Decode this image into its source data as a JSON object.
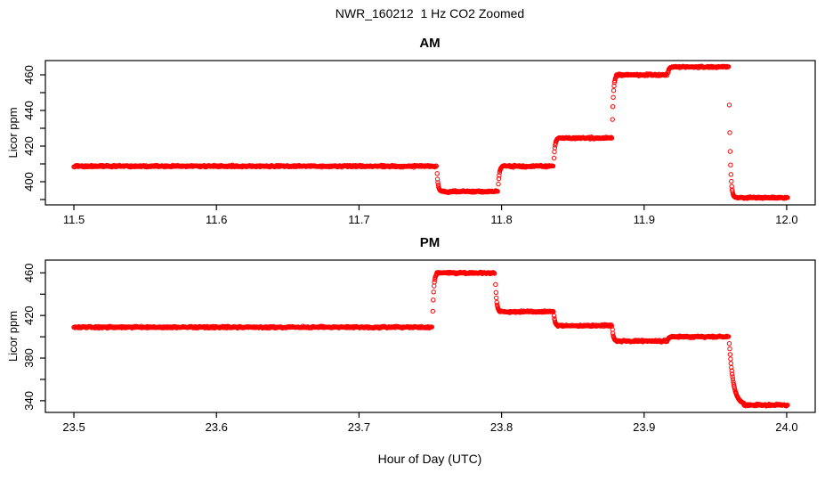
{
  "title": "NWR_160212  1 Hz CO2 Zoomed",
  "xlabel": "Hour of Day (UTC)",
  "accent_color": "#ff0000",
  "chart_data": [
    {
      "type": "scatter",
      "title": "AM",
      "ylabel": "Licor ppm",
      "marker": "open-circle",
      "color": "#ff0000",
      "sample_rate_hz": 1,
      "xlim": [
        11.48,
        12.02
      ],
      "ylim": [
        387,
        468
      ],
      "xticks": [
        11.5,
        11.6,
        11.7,
        11.8,
        11.9,
        12.0
      ],
      "xtick_labels": [
        "11.5",
        "11.6",
        "11.7",
        "11.8",
        "11.9",
        "12.0"
      ],
      "yticks": [
        390,
        400,
        410,
        420,
        430,
        440,
        450,
        460
      ],
      "ytick_labels": [
        "",
        "400",
        "",
        "420",
        "",
        "440",
        "",
        "460"
      ],
      "grid": false,
      "legend": false,
      "noise_ppm": 0.5,
      "transition_tau_h": 0.0008,
      "seed": 42,
      "segments": [
        {
          "start": 11.5,
          "end": 11.7545,
          "value": 408.7
        },
        {
          "start": 11.7576,
          "end": 11.7975,
          "value": 394.5
        },
        {
          "start": 11.8006,
          "end": 11.8365,
          "value": 408.7
        },
        {
          "start": 11.8396,
          "end": 11.8775,
          "value": 424.5
        },
        {
          "start": 11.8806,
          "end": 11.9165,
          "value": 460.0
        },
        {
          "start": 11.9196,
          "end": 11.9595,
          "value": 464.5
        },
        {
          "start": 11.966,
          "end": 12.0008,
          "value": 391.0
        }
      ]
    },
    {
      "type": "scatter",
      "title": "PM",
      "ylabel": "Licor ppm",
      "marker": "open-circle",
      "color": "#ff0000",
      "sample_rate_hz": 1,
      "xlim": [
        23.48,
        24.02
      ],
      "ylim": [
        329,
        472
      ],
      "xticks": [
        23.5,
        23.6,
        23.7,
        23.8,
        23.9,
        24.0
      ],
      "xtick_labels": [
        "23.5",
        "23.6",
        "23.7",
        "23.8",
        "23.9",
        "24.0"
      ],
      "yticks": [
        340,
        360,
        380,
        400,
        420,
        440,
        460
      ],
      "ytick_labels": [
        "340",
        "",
        "380",
        "",
        "420",
        "",
        "460"
      ],
      "grid": false,
      "legend": false,
      "noise_ppm": 0.8,
      "transition_tau_h": 0.0008,
      "final_decay_tau_h": 0.0028,
      "seed": 1337,
      "segments": [
        {
          "start": 23.5,
          "end": 23.7515,
          "value": 409.0
        },
        {
          "start": 23.7546,
          "end": 23.7955,
          "value": 460.0
        },
        {
          "start": 23.7986,
          "end": 23.8365,
          "value": 423.5
        },
        {
          "start": 23.8396,
          "end": 23.8775,
          "value": 410.5
        },
        {
          "start": 23.8806,
          "end": 23.9165,
          "value": 396.0
        },
        {
          "start": 23.9196,
          "end": 23.9595,
          "value": 400.0
        },
        {
          "start": 23.97,
          "end": 24.0008,
          "value": 336.0
        }
      ]
    }
  ]
}
